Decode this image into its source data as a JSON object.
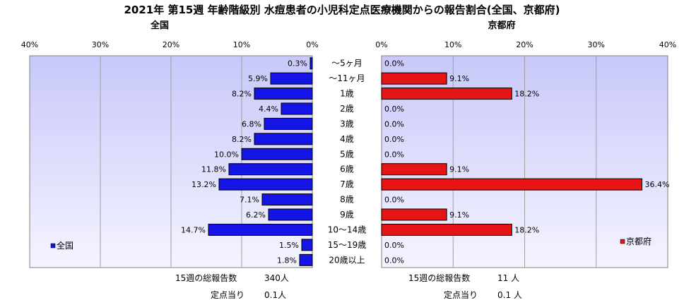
{
  "title": "2021年 第15週 年齢階級別 水痘患者の小児科定点医療機関からの報告割合(全国、京都府)",
  "chart_data": {
    "type": "bar",
    "orientation": "horizontal",
    "categories": [
      "～5ヶ月",
      "～11ヶ月",
      "1歳",
      "2歳",
      "3歳",
      "4歳",
      "5歳",
      "6歳",
      "7歳",
      "8歳",
      "9歳",
      "10～14歳",
      "15～19歳",
      "20歳以上"
    ],
    "panels": [
      {
        "id": "national",
        "subtitle": "全国",
        "direction": "left",
        "xlim": [
          0,
          40
        ],
        "ticks": [
          "0%",
          "10%",
          "20%",
          "30%",
          "40%"
        ],
        "series": [
          {
            "name": "全国",
            "color": "#1414e6",
            "values": [
              0.3,
              5.9,
              8.2,
              4.4,
              6.8,
              8.2,
              10.0,
              11.8,
              13.2,
              7.1,
              6.2,
              14.7,
              1.5,
              1.8
            ]
          }
        ],
        "value_labels": [
          "0.3%",
          "5.9%",
          "8.2%",
          "4.4%",
          "6.8%",
          "8.2%",
          "10.0%",
          "11.8%",
          "13.2%",
          "7.1%",
          "6.2%",
          "14.7%",
          "1.5%",
          "1.8%"
        ],
        "legend": "全国",
        "footer": {
          "total_label": "15週の総報告数",
          "total_value": "340人",
          "per_label": "定点当り",
          "per_value": "0.1人"
        }
      },
      {
        "id": "kyoto",
        "subtitle": "京都府",
        "direction": "right",
        "xlim": [
          0,
          40
        ],
        "ticks": [
          "0%",
          "10%",
          "20%",
          "30%",
          "40%"
        ],
        "series": [
          {
            "name": "京都府",
            "color": "#e61414",
            "values": [
              0.0,
              9.1,
              18.2,
              0.0,
              0.0,
              0.0,
              0.0,
              9.1,
              36.4,
              0.0,
              9.1,
              18.2,
              0.0,
              0.0
            ]
          }
        ],
        "value_labels": [
          "0.0%",
          "9.1%",
          "18.2%",
          "0.0%",
          "0.0%",
          "0.0%",
          "0.0%",
          "9.1%",
          "36.4%",
          "0.0%",
          "9.1%",
          "18.2%",
          "0.0%",
          "0.0%"
        ],
        "legend": "京都府",
        "footer": {
          "total_label": "15週の総報告数",
          "total_value": "11 人",
          "per_label": "定点当り",
          "per_value": "0.1 人"
        }
      }
    ],
    "grid": true
  }
}
